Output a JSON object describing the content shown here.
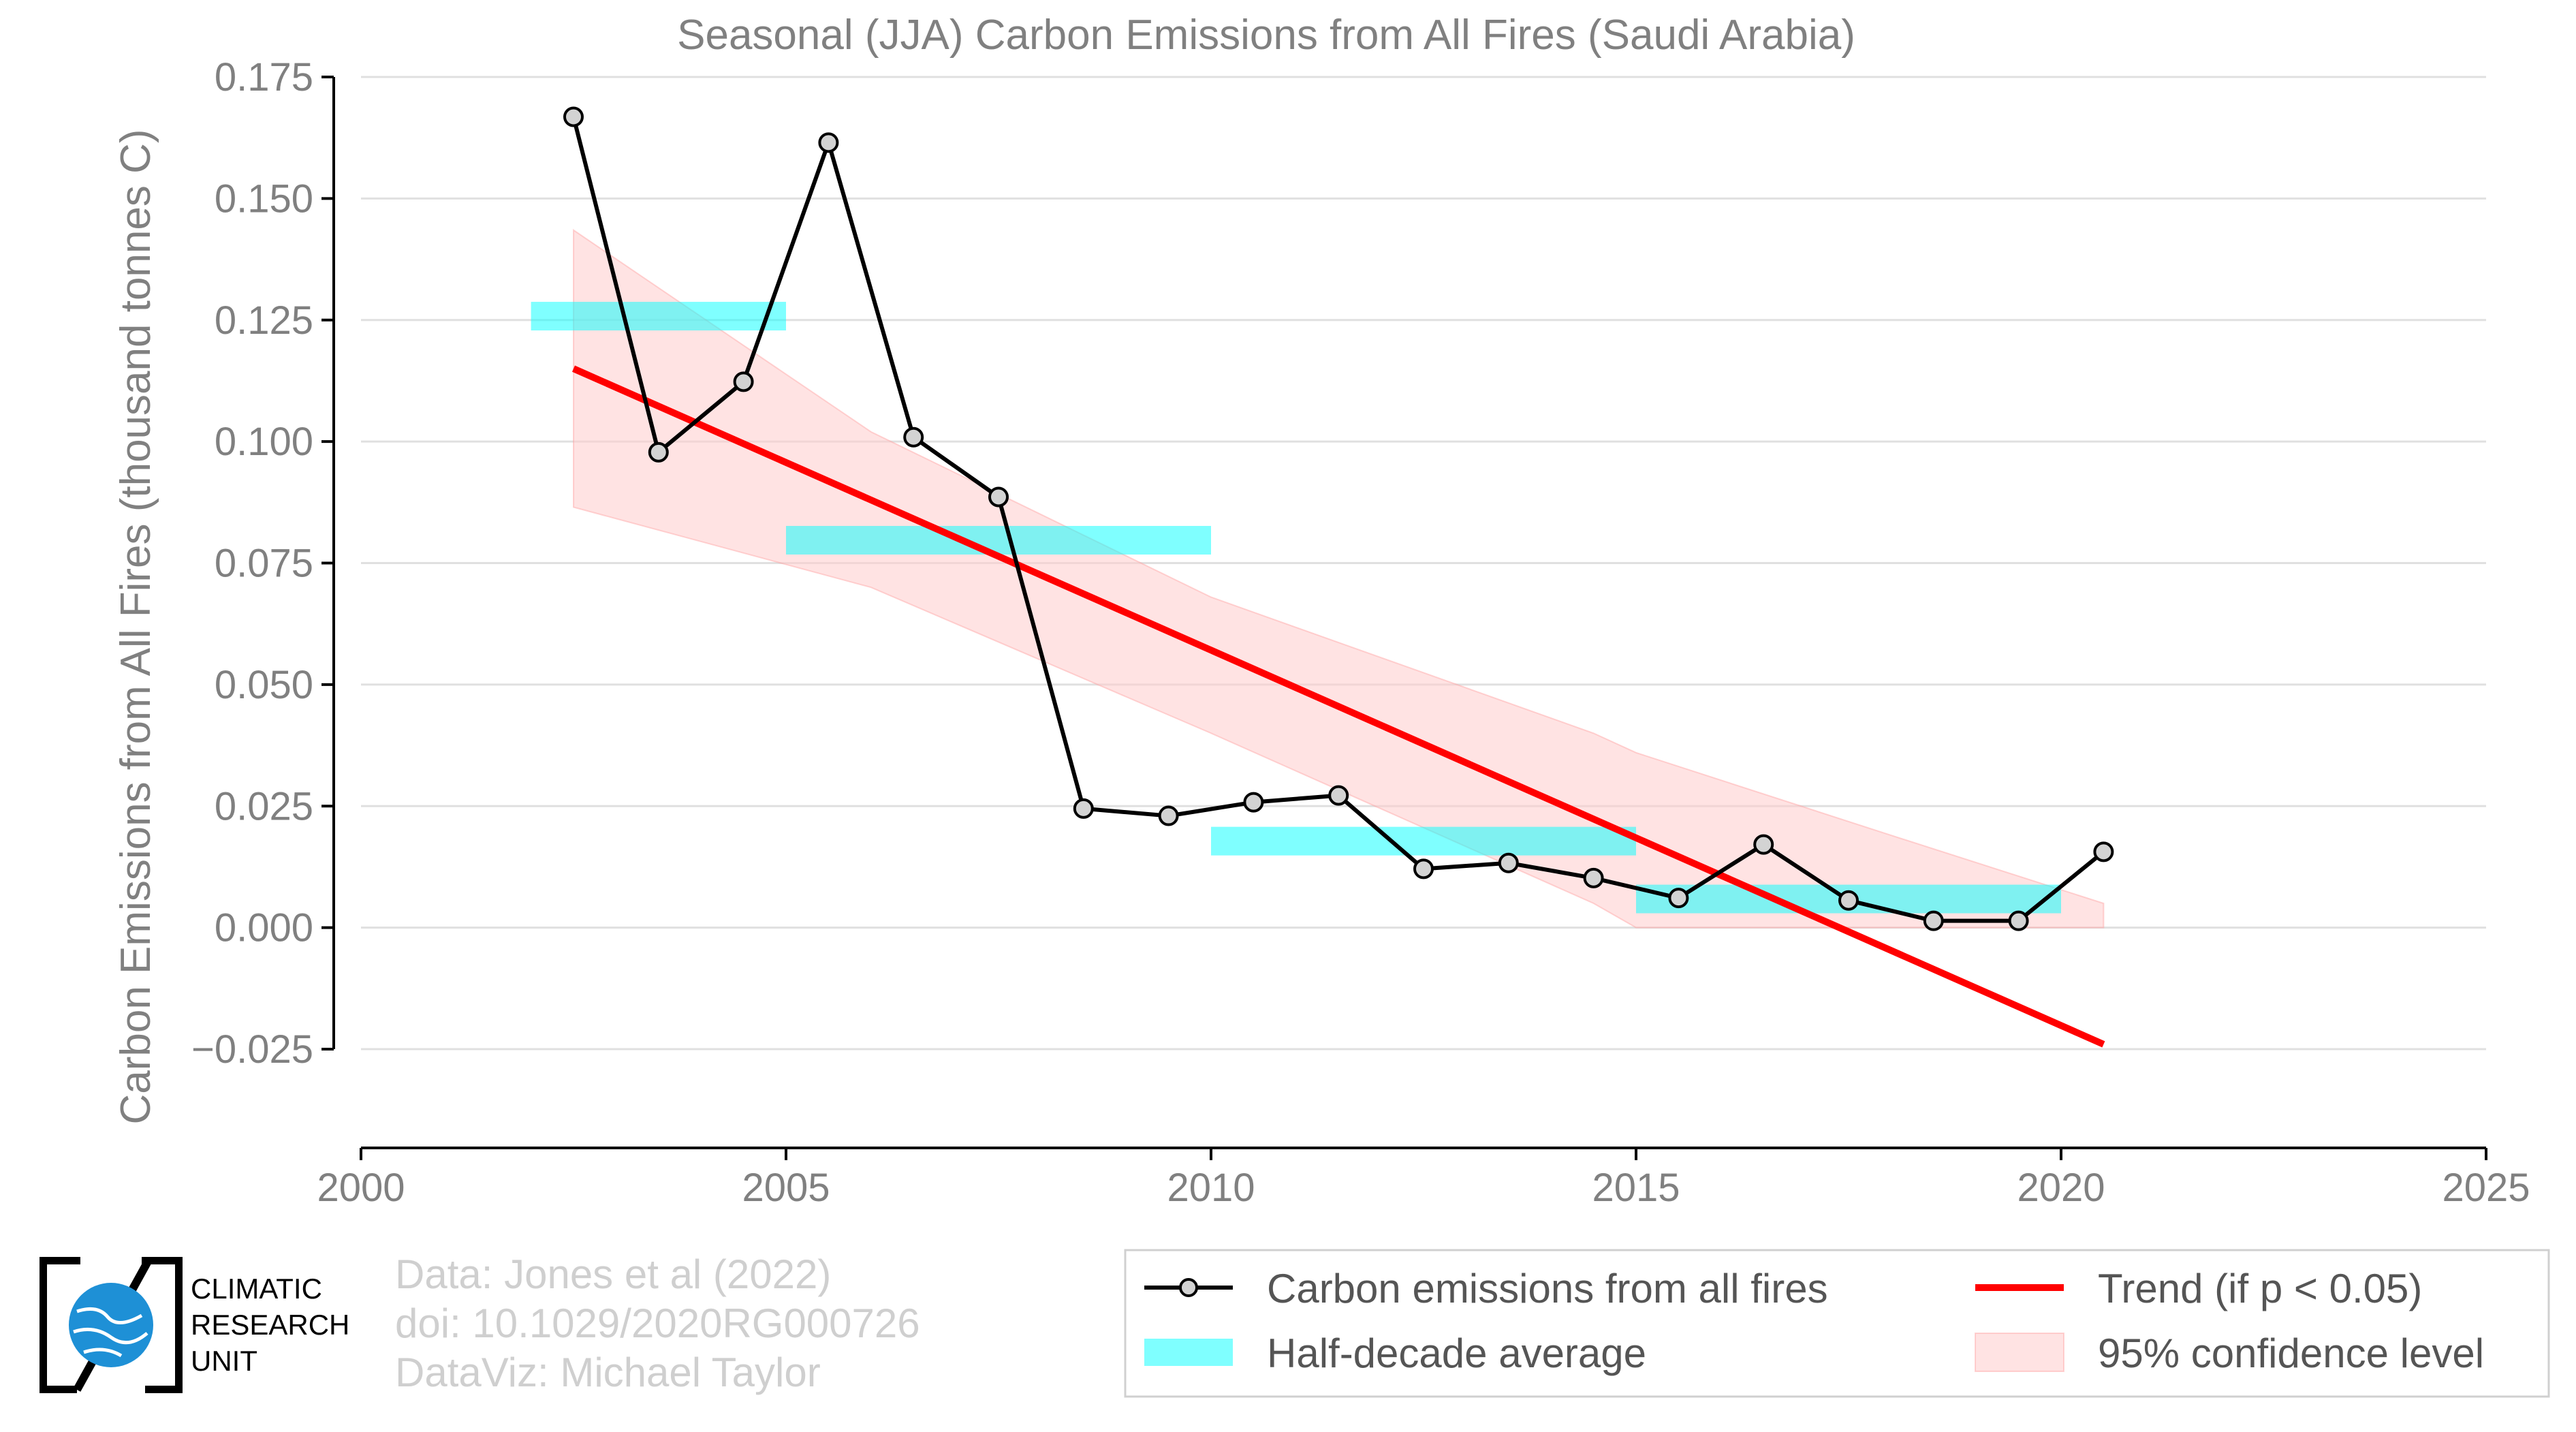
{
  "chart_data": {
    "type": "line",
    "title": "Seasonal (JJA) Carbon Emissions from All Fires (Saudi Arabia)",
    "xlabel": "",
    "ylabel": "Carbon Emissions from All Fires (thousand tonnes C)",
    "xlim": [
      2000,
      2025
    ],
    "ylim": [
      -0.032,
      0.175
    ],
    "x_ticks": [
      2000,
      2005,
      2010,
      2015,
      2020,
      2025
    ],
    "y_ticks": [
      -0.025,
      0.0,
      0.025,
      0.05,
      0.075,
      0.1,
      0.125,
      0.15,
      0.175
    ],
    "x_tick_labels": [
      "2000",
      "2005",
      "2010",
      "2015",
      "2020",
      "2025"
    ],
    "y_tick_labels": [
      "−0.025",
      "0.000",
      "0.025",
      "0.050",
      "0.075",
      "0.100",
      "0.125",
      "0.150",
      "0.175"
    ],
    "grid": "horizontal",
    "legend_position": "bottom-right",
    "series": [
      {
        "name": "Carbon emissions from all fires",
        "style": "line-markers",
        "color": "#000000",
        "x": [
          2002.5,
          2003.5,
          2004.5,
          2005.5,
          2006.5,
          2007.5,
          2008.5,
          2009.5,
          2010.5,
          2011.5,
          2012.5,
          2013.5,
          2014.5,
          2015.5,
          2016.5,
          2017.5,
          2018.5,
          2019.5,
          2020.5
        ],
        "y": [
          0.1668,
          0.0978,
          0.1123,
          0.1615,
          0.1009,
          0.0886,
          0.0245,
          0.023,
          0.0258,
          0.0272,
          0.0121,
          0.0133,
          0.0102,
          0.0061,
          0.0171,
          0.0056,
          0.0014,
          0.0014,
          0.0156
        ]
      },
      {
        "name": "Trend (if p < 0.05)",
        "style": "line",
        "color": "#ff0000",
        "x": [
          2002.5,
          2020.5
        ],
        "y": [
          0.115,
          -0.024
        ]
      },
      {
        "name": "Half-decade average",
        "style": "bars",
        "color": "#00ffff",
        "segments": [
          {
            "x0": 2002.0,
            "x1": 2005.0,
            "y": 0.1258
          },
          {
            "x0": 2005.0,
            "x1": 2010.0,
            "y": 0.0797
          },
          {
            "x0": 2010.0,
            "x1": 2015.0,
            "y": 0.0178
          },
          {
            "x0": 2015.0,
            "x1": 2020.0,
            "y": 0.0059
          }
        ]
      },
      {
        "name": "95% confidence level",
        "style": "band",
        "color": "#ffcccc",
        "x": [
          2002.5,
          2006.0,
          2010.0,
          2014.5,
          2015.0,
          2018.0,
          2020.5
        ],
        "upper": [
          0.1435,
          0.102,
          0.068,
          0.04,
          0.036,
          0.019,
          0.005
        ],
        "lower": [
          0.0865,
          0.07,
          0.04,
          0.005,
          0.0,
          0.0,
          0.0
        ]
      }
    ],
    "legend": [
      {
        "label": "Carbon emissions from all fires",
        "style": "line-markers",
        "color": "#000000"
      },
      {
        "label": "Trend (if p < 0.05)",
        "style": "line",
        "color": "#ff0000"
      },
      {
        "label": "Half-decade average",
        "style": "bars",
        "color": "#00ffff"
      },
      {
        "label": "95% confidence level",
        "style": "band",
        "color": "#ffcccc"
      }
    ]
  },
  "footer": {
    "credit_line_1": "Data: Jones et al (2022)",
    "credit_line_2": "doi: 10.1029/2020RG000726",
    "credit_line_3": "DataViz: Michael Taylor",
    "logo_text_1": "CLIMATIC",
    "logo_text_2": "RESEARCH",
    "logo_text_3": "UNIT"
  },
  "colors": {
    "axis": "#000000",
    "tick_text": "#808080",
    "grid": "#e0e0e0",
    "logo_blue": "#1e90d6"
  }
}
